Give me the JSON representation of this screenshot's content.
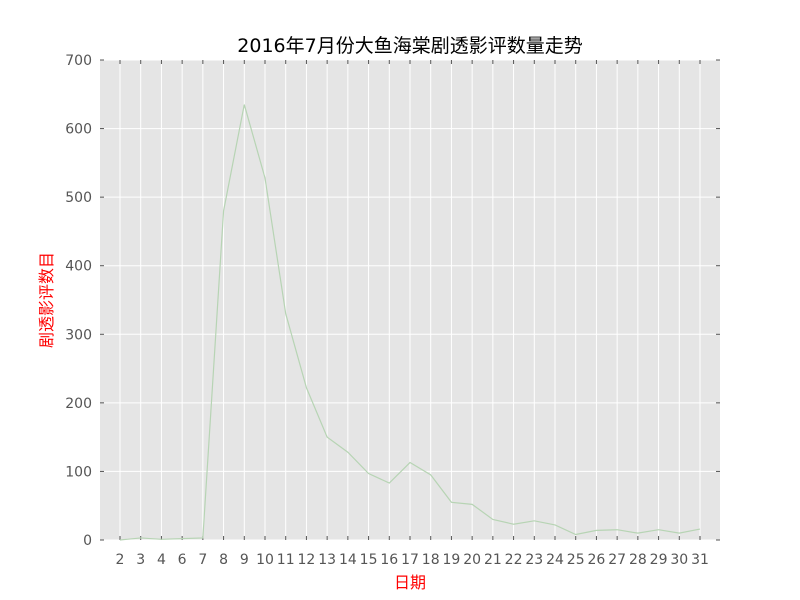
{
  "chart_data": {
    "type": "line",
    "title": "2016年7月份大鱼海棠剧透影评数量走势",
    "xlabel": "日期",
    "ylabel": "剧透影评数目",
    "x": [
      "2",
      "3",
      "4",
      "6",
      "7",
      "8",
      "9",
      "10",
      "11",
      "12",
      "13",
      "14",
      "15",
      "16",
      "17",
      "18",
      "19",
      "20",
      "21",
      "22",
      "23",
      "24",
      "25",
      "26",
      "27",
      "28",
      "29",
      "30",
      "31"
    ],
    "series": [
      {
        "values": [
          0,
          3,
          1,
          2,
          3,
          480,
          635,
          528,
          330,
          222,
          150,
          128,
          97,
          83,
          113,
          95,
          55,
          52,
          30,
          23,
          28,
          22,
          8,
          14,
          15,
          10,
          15,
          10,
          16
        ]
      }
    ],
    "ylim": [
      0,
      700
    ],
    "yticks": [
      0,
      100,
      200,
      300,
      400,
      500,
      600,
      700
    ],
    "grid": true,
    "style": "ggplot",
    "colors": {
      "background": "#e5e5e5",
      "grid": "#ffffff",
      "line": "#b7d4b4",
      "axis_label": "#ff0000",
      "title": "#000000",
      "tick": "#555555"
    }
  }
}
